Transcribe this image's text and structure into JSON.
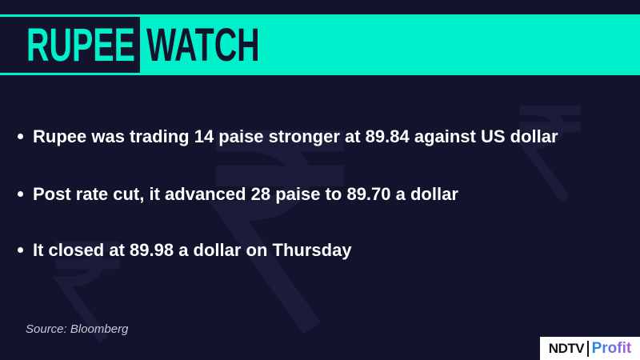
{
  "header": {
    "title_part1": "RUPEE",
    "title_part2": "WATCH"
  },
  "bullets": [
    "Rupee was trading 14 paise stronger at 89.84 against US dollar",
    "Post rate cut, it advanced 28 paise to 89.70 a dollar",
    "It closed at 89.98 a dollar on Thursday"
  ],
  "source": "Source: Bloomberg",
  "logo": {
    "brand": "NDTV",
    "sub": "Profit"
  },
  "watermark": {
    "symbol": "₹"
  },
  "colors": {
    "background": "#12132d",
    "accent": "#00f0cc",
    "text": "#ffffff"
  }
}
